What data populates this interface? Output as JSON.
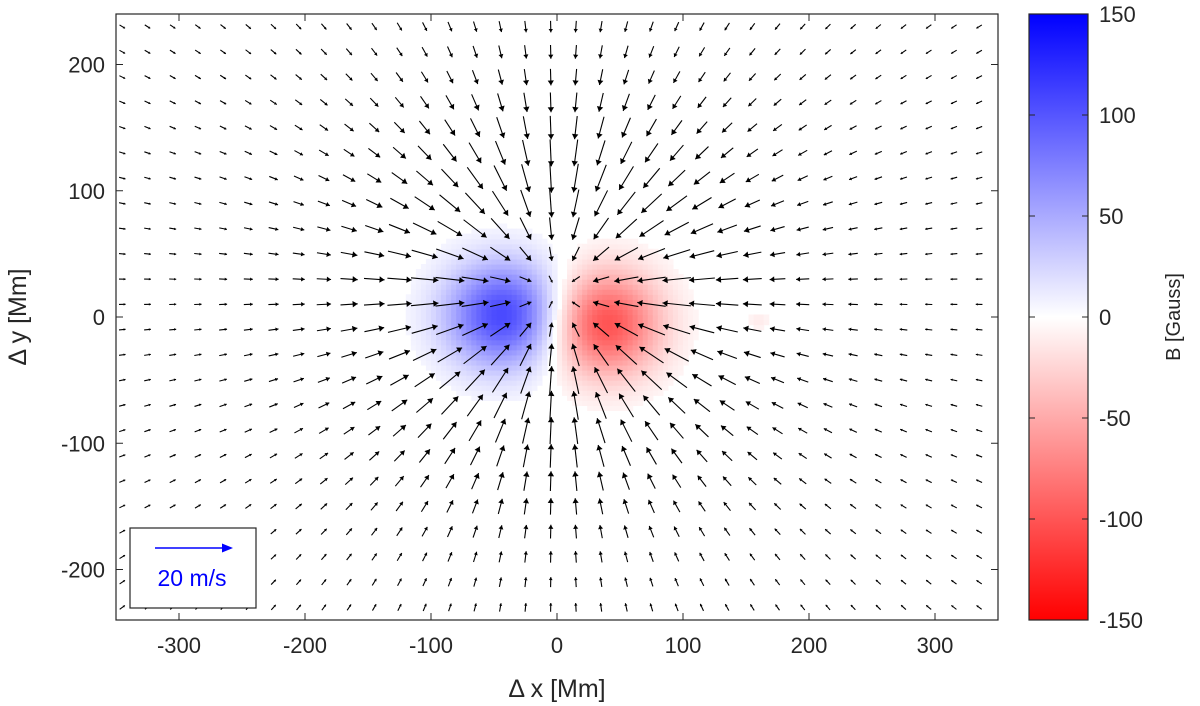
{
  "chart_data": {
    "type": "heatmap",
    "subtype": "vector-field-over-colormap",
    "xlabel": "Δ x [Mm]",
    "ylabel": "Δ y [Mm]",
    "xlim": [
      -350,
      350
    ],
    "ylim": [
      -240,
      240
    ],
    "x_ticks": [
      -300,
      -200,
      -100,
      0,
      100,
      200,
      300
    ],
    "y_ticks": [
      -200,
      -100,
      0,
      100,
      200
    ],
    "x_tick_labels": [
      "-300",
      "-200",
      "-100",
      "0",
      "100",
      "200",
      "300"
    ],
    "y_tick_labels": [
      "-200",
      "-100",
      "0",
      "100",
      "200"
    ],
    "grid": false,
    "colorbar": {
      "label": "B [Gauss]",
      "min": -150,
      "max": 150,
      "ticks": [
        150,
        100,
        50,
        0,
        -50,
        -100,
        -150
      ],
      "tick_labels": [
        "150",
        "100",
        "50",
        "0",
        "-50",
        "-100",
        "-150"
      ],
      "color_min": "#ff0000",
      "color_mid": "#ffffff",
      "color_max": "#0000ff"
    },
    "magnetic_field": {
      "positive_region": {
        "center_x": -42,
        "center_y": 2,
        "peak_gauss": 110,
        "extent_x": 95,
        "extent_y": 75
      },
      "negative_region": {
        "center_x": 38,
        "center_y": -5,
        "peak_gauss": -105,
        "extent_x": 90,
        "extent_y": 75
      }
    },
    "flow_field": {
      "grid_x_range": [
        -345,
        345
      ],
      "grid_y_range": [
        -230,
        230
      ],
      "grid_spacing_mm": 20,
      "inflow_center": [
        0,
        20
      ],
      "arrow_color": "#000000"
    },
    "velocity_key": {
      "label": "20 m/s",
      "speed_ms": 20,
      "color": "#0000ff"
    }
  }
}
